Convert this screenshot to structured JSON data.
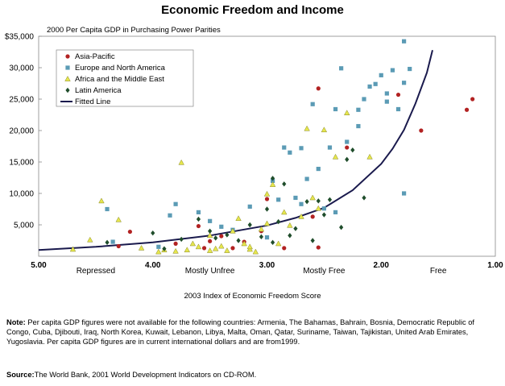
{
  "title": "Economic Freedom and Income",
  "note_label": "Note:",
  "note_text": "Per capita GDP figures were not available for the following countries: Armenia, The Bahamas, Bahrain, Bosnia, Democratic Republic of Congo, Cuba, Djibouti, Iraq, North Korea, Kuwait, Lebanon, Libya, Malta, Oman, Qatar, Suriname, Taiwan, Tajikistan, United Arab Emirates, Yugoslavia. Per capita GDP figures are in current international dollars and are from1999.",
  "source_label": "Source:",
  "source_text": "The World Bank, 2001 World Development Indicators on CD-ROM.",
  "chart_data": {
    "type": "scatter",
    "ylabel": "2000 Per Capita GDP in Purchasing Power Parities",
    "xlabel": "2003 Index of Economic Freedom Score",
    "xlim": [
      5.0,
      1.0
    ],
    "ylim": [
      0,
      35000
    ],
    "x_ticks": [
      "5.00",
      "4.00",
      "3.00",
      "2.00",
      "1.00"
    ],
    "y_ticks": [
      "$35,000",
      "30,000",
      "25,000",
      "20,000",
      "15,000",
      "10,000",
      "5,000"
    ],
    "y_tick_values": [
      35000,
      30000,
      25000,
      20000,
      15000,
      10000,
      5000
    ],
    "category_labels": [
      {
        "label": "Repressed",
        "x": 4.5
      },
      {
        "label": "Mostly Unfree",
        "x": 3.5
      },
      {
        "label": "Mostly Free",
        "x": 2.5
      },
      {
        "label": "Free",
        "x": 1.5
      }
    ],
    "legend_position": "top-left",
    "series": [
      {
        "name": "Asia-Pacific",
        "marker": "circle",
        "color": "#b22222",
        "points": [
          [
            4.3,
            1600
          ],
          [
            4.2,
            3900
          ],
          [
            3.8,
            2000
          ],
          [
            3.6,
            4800
          ],
          [
            3.5,
            2400
          ],
          [
            3.4,
            3200
          ],
          [
            3.3,
            1300
          ],
          [
            3.2,
            2300
          ],
          [
            3.0,
            9100
          ],
          [
            2.85,
            1300
          ],
          [
            2.6,
            6300
          ],
          [
            2.55,
            1400
          ],
          [
            2.55,
            26700
          ],
          [
            2.3,
            17300
          ],
          [
            1.85,
            25700
          ],
          [
            1.65,
            20000
          ],
          [
            1.25,
            23300
          ],
          [
            1.2,
            25000
          ],
          [
            3.05,
            4000
          ],
          [
            3.55,
            1300
          ]
        ]
      },
      {
        "name": "Europe and North America",
        "marker": "square",
        "color": "#5b9bb5",
        "points": [
          [
            4.4,
            7500
          ],
          [
            4.35,
            2300
          ],
          [
            3.95,
            1500
          ],
          [
            3.85,
            6500
          ],
          [
            3.8,
            8300
          ],
          [
            3.6,
            7000
          ],
          [
            3.5,
            5600
          ],
          [
            3.4,
            4700
          ],
          [
            3.3,
            4200
          ],
          [
            3.15,
            7900
          ],
          [
            2.95,
            12000
          ],
          [
            2.9,
            9000
          ],
          [
            2.85,
            17300
          ],
          [
            2.8,
            16500
          ],
          [
            2.75,
            9300
          ],
          [
            2.7,
            17200
          ],
          [
            2.7,
            8300
          ],
          [
            2.65,
            12300
          ],
          [
            2.6,
            24200
          ],
          [
            2.55,
            13900
          ],
          [
            2.5,
            7600
          ],
          [
            2.45,
            17300
          ],
          [
            2.4,
            23400
          ],
          [
            2.35,
            29900
          ],
          [
            2.3,
            18200
          ],
          [
            2.2,
            20700
          ],
          [
            2.2,
            23300
          ],
          [
            2.15,
            25000
          ],
          [
            2.1,
            27000
          ],
          [
            2.05,
            27400
          ],
          [
            2.0,
            28800
          ],
          [
            1.95,
            24600
          ],
          [
            1.95,
            25900
          ],
          [
            1.9,
            29600
          ],
          [
            1.85,
            23400
          ],
          [
            1.8,
            27600
          ],
          [
            1.8,
            34200
          ],
          [
            1.75,
            29800
          ],
          [
            1.8,
            10000
          ],
          [
            3.0,
            3000
          ],
          [
            2.4,
            7000
          ]
        ]
      },
      {
        "name": "Africa and the Middle East",
        "marker": "triangle",
        "color": "#e6e64d",
        "points": [
          [
            4.7,
            1100
          ],
          [
            4.55,
            2600
          ],
          [
            4.45,
            8800
          ],
          [
            4.3,
            5800
          ],
          [
            4.1,
            1300
          ],
          [
            3.95,
            700
          ],
          [
            3.9,
            1000
          ],
          [
            3.8,
            800
          ],
          [
            3.75,
            14900
          ],
          [
            3.7,
            1000
          ],
          [
            3.65,
            2000
          ],
          [
            3.6,
            1500
          ],
          [
            3.5,
            3300
          ],
          [
            3.45,
            1200
          ],
          [
            3.4,
            1600
          ],
          [
            3.35,
            900
          ],
          [
            3.3,
            4000
          ],
          [
            3.25,
            6000
          ],
          [
            3.2,
            2000
          ],
          [
            3.15,
            1100
          ],
          [
            3.1,
            700
          ],
          [
            3.05,
            4300
          ],
          [
            3.0,
            9900
          ],
          [
            3.0,
            5200
          ],
          [
            2.95,
            11400
          ],
          [
            2.9,
            2000
          ],
          [
            2.85,
            7000
          ],
          [
            2.8,
            4900
          ],
          [
            2.7,
            6300
          ],
          [
            2.65,
            20300
          ],
          [
            2.6,
            9300
          ],
          [
            2.55,
            7600
          ],
          [
            2.5,
            20100
          ],
          [
            2.4,
            15800
          ],
          [
            2.3,
            22800
          ],
          [
            2.1,
            15800
          ],
          [
            3.15,
            1500
          ],
          [
            3.5,
            900
          ]
        ]
      },
      {
        "name": "Latin America",
        "marker": "diamond",
        "color": "#1f4d2b",
        "points": [
          [
            4.4,
            2200
          ],
          [
            4.0,
            3700
          ],
          [
            3.9,
            1200
          ],
          [
            3.75,
            2700
          ],
          [
            3.6,
            5900
          ],
          [
            3.5,
            4000
          ],
          [
            3.45,
            2900
          ],
          [
            3.35,
            3400
          ],
          [
            3.25,
            2500
          ],
          [
            3.15,
            5000
          ],
          [
            3.05,
            3100
          ],
          [
            3.0,
            7500
          ],
          [
            2.95,
            12400
          ],
          [
            2.9,
            5500
          ],
          [
            2.85,
            11500
          ],
          [
            2.8,
            3300
          ],
          [
            2.75,
            4400
          ],
          [
            2.65,
            8700
          ],
          [
            2.6,
            2500
          ],
          [
            2.55,
            8800
          ],
          [
            2.5,
            6600
          ],
          [
            2.45,
            9000
          ],
          [
            2.35,
            4600
          ],
          [
            2.3,
            15400
          ],
          [
            2.25,
            16900
          ],
          [
            2.15,
            9300
          ],
          [
            2.95,
            2200
          ]
        ]
      }
    ],
    "fitted_line": {
      "name": "Fitted Line",
      "color": "#1a1a4d",
      "points": [
        [
          5.0,
          1000
        ],
        [
          4.5,
          1500
        ],
        [
          4.0,
          2200
        ],
        [
          3.5,
          3300
        ],
        [
          3.0,
          4900
        ],
        [
          2.75,
          6100
        ],
        [
          2.5,
          7700
        ],
        [
          2.25,
          10500
        ],
        [
          2.0,
          14700
        ],
        [
          1.9,
          17100
        ],
        [
          1.8,
          20100
        ],
        [
          1.7,
          24300
        ],
        [
          1.6,
          29200
        ],
        [
          1.55,
          32800
        ]
      ]
    }
  }
}
